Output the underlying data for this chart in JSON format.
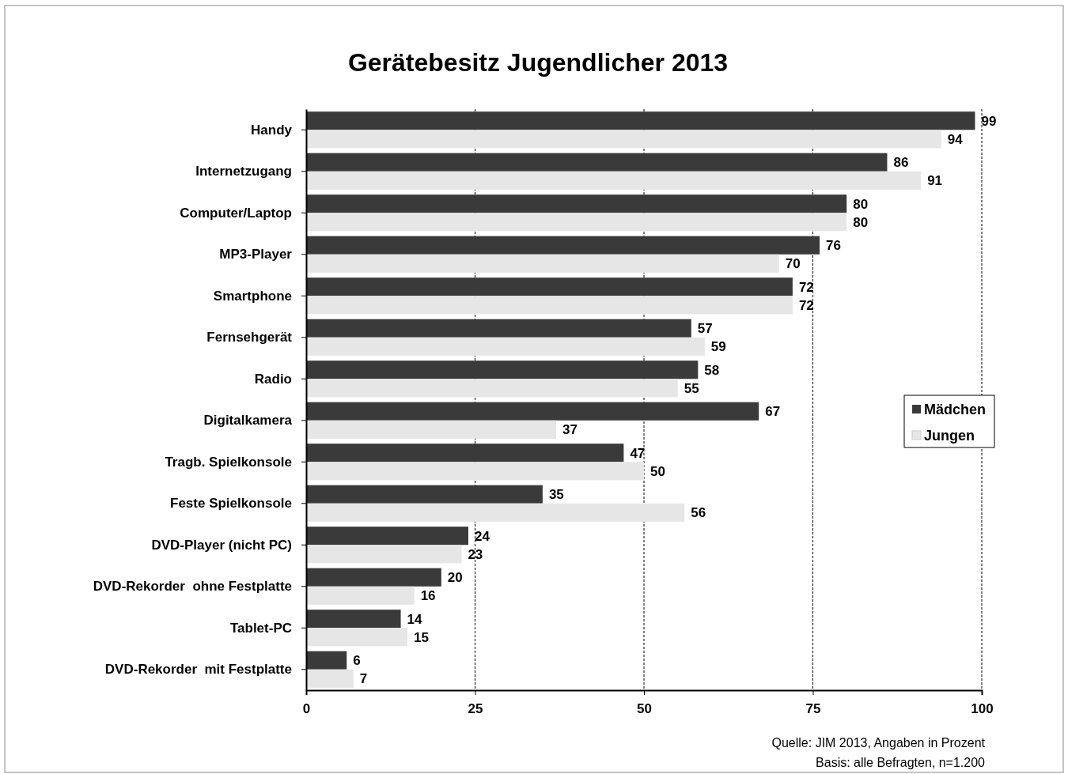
{
  "chart_data": {
    "type": "bar",
    "orientation": "horizontal",
    "title": "Gerätebesitz Jugendlicher 2013",
    "categories": [
      "Handy",
      "Internetzugang",
      "Computer/Laptop",
      "MP3-Player",
      "Smartphone",
      "Fernsehgerät",
      "Radio",
      "Digitalkamera",
      "Tragb. Spielkonsole",
      "Feste Spielkonsole",
      "DVD-Player (nicht PC)",
      "DVD-Rekorder  ohne Festplatte",
      "Tablet-PC",
      "DVD-Rekorder  mit Festplatte"
    ],
    "series": [
      {
        "name": "Mädchen",
        "color": "#3a3a3a",
        "values": [
          99,
          86,
          80,
          76,
          72,
          57,
          58,
          67,
          47,
          35,
          24,
          20,
          14,
          6
        ]
      },
      {
        "name": "Jungen",
        "color": "#e6e6e6",
        "values": [
          94,
          91,
          80,
          70,
          72,
          59,
          55,
          37,
          50,
          56,
          23,
          16,
          15,
          7
        ]
      }
    ],
    "xlim": [
      0,
      100
    ],
    "xticks": [
      0,
      25,
      50,
      75,
      100
    ],
    "grid": "x",
    "legend": "right",
    "data_labels": true,
    "annotations": [
      "Quelle: JIM 2013, Angaben in Prozent",
      "Basis: alle Befragten, n=1.200"
    ]
  }
}
